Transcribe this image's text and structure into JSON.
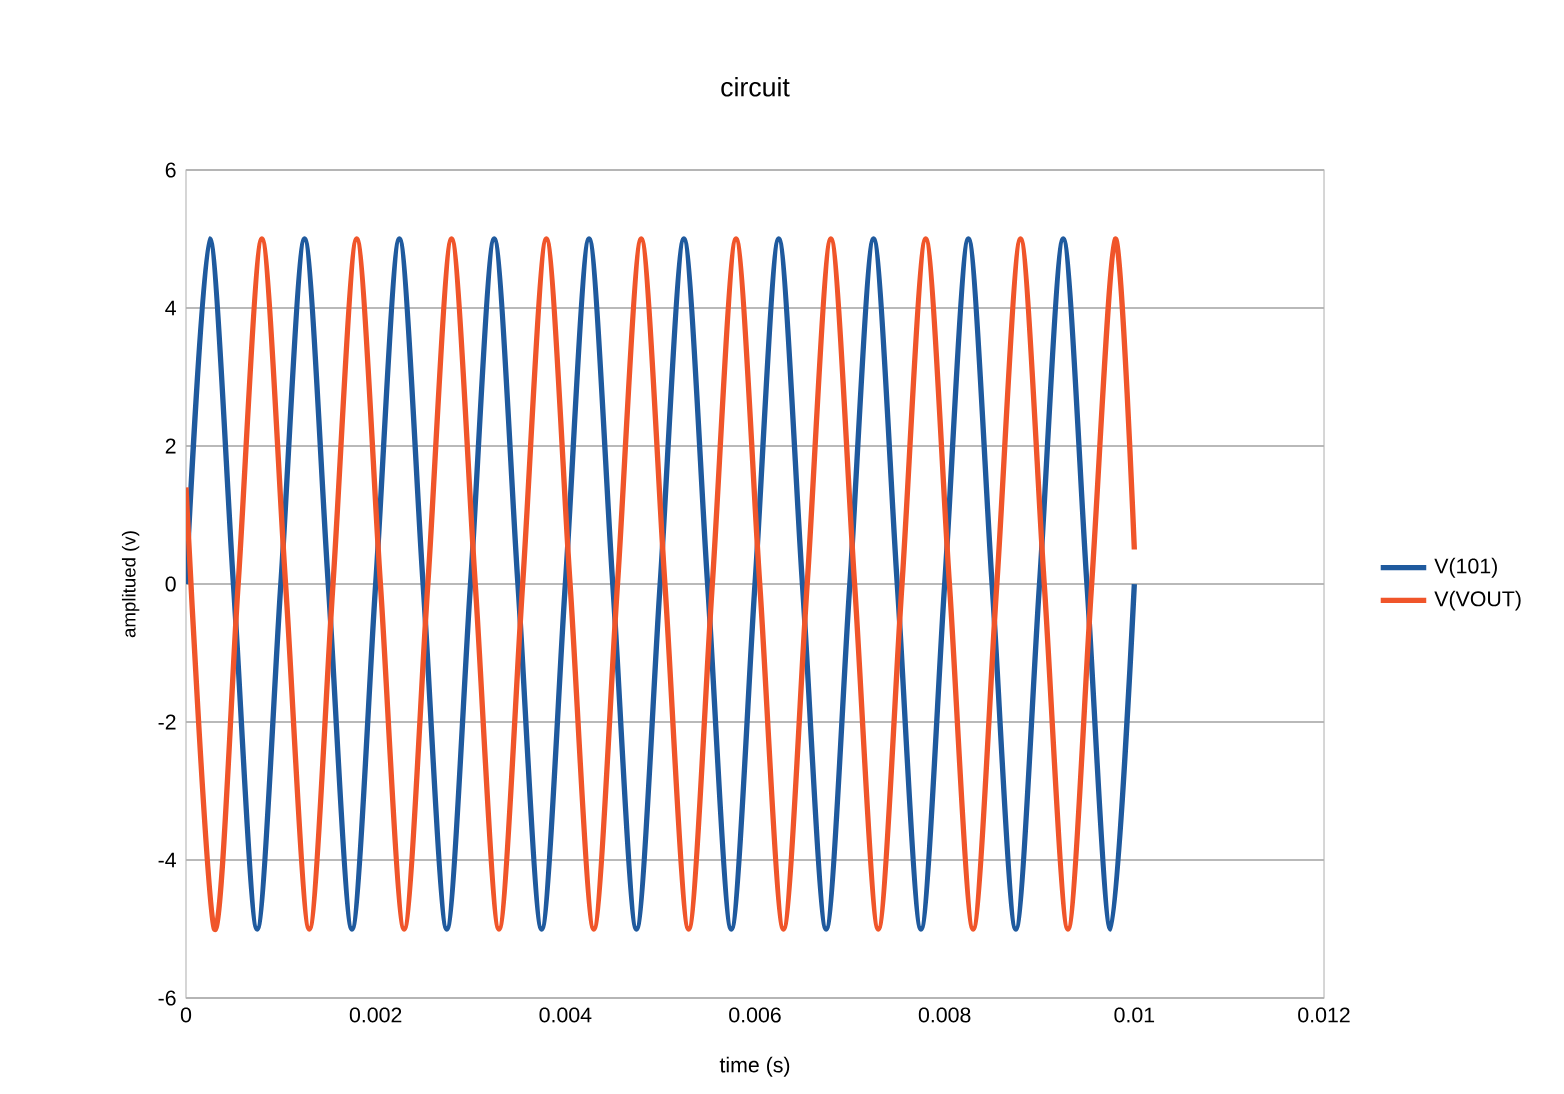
{
  "chart_data": {
    "type": "line",
    "title": "circuit",
    "xlabel": "time (s)",
    "ylabel": "amplitued (v)",
    "xlim": [
      0,
      0.012
    ],
    "xticks": [
      0,
      0.002,
      0.004,
      0.006,
      0.008,
      0.01,
      0.012
    ],
    "ylim": [
      -6,
      6
    ],
    "yticks": [
      -6,
      -4,
      -2,
      0,
      2,
      4,
      6
    ],
    "grid": "y",
    "legend": "right",
    "marker": "none",
    "series": [
      {
        "name": "V(101)",
        "color": "#1f5a9e",
        "x": [
          0,
          0.00025,
          0.0005,
          0.00075,
          0.001,
          0.00125,
          0.0015,
          0.00175,
          0.002,
          0.00225,
          0.0025,
          0.00275,
          0.003,
          0.00325,
          0.0035,
          0.00375,
          0.004,
          0.00425,
          0.0045,
          0.00475,
          0.005,
          0.00525,
          0.0055,
          0.00575,
          0.006,
          0.00625,
          0.0065,
          0.00675,
          0.007,
          0.00725,
          0.0075,
          0.00775,
          0.008,
          0.00825,
          0.0085,
          0.00875,
          0.009,
          0.00925,
          0.0095,
          0.00975,
          0.01
        ],
        "values": [
          0,
          5,
          0,
          -5,
          0,
          5,
          0,
          -5,
          0,
          5,
          0,
          -5,
          0,
          5,
          0,
          -5,
          0,
          5,
          0,
          -5,
          0,
          5,
          0,
          -5,
          0,
          5,
          0,
          -5,
          0,
          5,
          0,
          -5,
          0,
          5,
          0,
          -5,
          0,
          5,
          0,
          -5,
          0
        ]
      },
      {
        "name": "V(VOUT)",
        "color": "#f0552a",
        "x": [
          0,
          0.0003,
          0.00055,
          0.0008,
          0.00105,
          0.0013,
          0.00155,
          0.0018,
          0.00205,
          0.0023,
          0.00255,
          0.0028,
          0.00305,
          0.0033,
          0.00355,
          0.0038,
          0.00405,
          0.0043,
          0.00455,
          0.0048,
          0.00505,
          0.0053,
          0.00555,
          0.0058,
          0.00605,
          0.0063,
          0.00655,
          0.0068,
          0.00705,
          0.0073,
          0.00755,
          0.0078,
          0.00805,
          0.0083,
          0.00855,
          0.0088,
          0.00905,
          0.0093,
          0.00955,
          0.0098,
          0.01
        ],
        "values": [
          1.4,
          -5,
          0,
          5,
          0,
          -5,
          0,
          5,
          0,
          -5,
          0,
          5,
          0,
          -5,
          0,
          5,
          0,
          -5,
          0,
          5,
          0,
          -5,
          0,
          5,
          0,
          -5,
          0,
          5,
          0,
          -5,
          0,
          5,
          0,
          -5,
          0,
          5,
          0,
          -5,
          0,
          5,
          0.5
        ]
      }
    ]
  }
}
